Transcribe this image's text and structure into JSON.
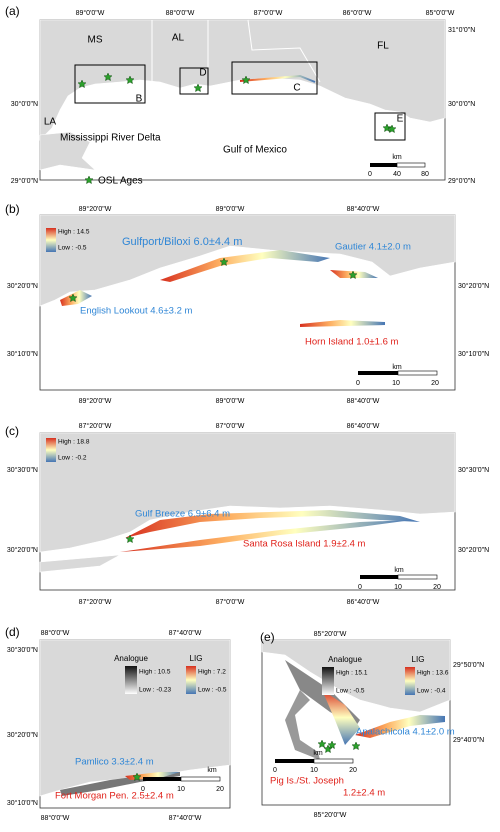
{
  "panels": [
    {
      "label": "(a)",
      "lon_ticks": [
        "89°0'0\"W",
        "88°0'0\"W",
        "87°0'0\"W",
        "86°0'0\"W",
        "85°0'0\"W"
      ],
      "lat_ticks": [
        "31°0'0\"N",
        "30°0'0\"N",
        "29°0'0\"N"
      ],
      "places": [
        "MS",
        "AL",
        "FL",
        "LA",
        "Mississippi River Delta",
        "Gulf of Mexico"
      ],
      "boxes": [
        "B",
        "C",
        "D",
        "E"
      ],
      "legend": "OSL Ages",
      "scale": {
        "unit": "km",
        "ticks": [
          "0",
          "40",
          "80"
        ]
      }
    },
    {
      "label": "(b)",
      "lon_ticks": [
        "89°20'0\"W",
        "89°0'0\"W",
        "88°40'0\"W"
      ],
      "lat_ticks": [
        "30°20'0\"N",
        "30°10'0\"N"
      ],
      "legend": {
        "high": "High : 14.5",
        "low": "Low : -0.5"
      },
      "annotations": [
        "Gulfport/Biloxi 6.0±4.4 m",
        "Gautier 4.1±2.0 m",
        "English Lookout 4.6±3.2 m",
        "Horn Island 1.0±1.6 m"
      ],
      "scale": {
        "unit": "km",
        "ticks": [
          "0",
          "10",
          "20"
        ]
      }
    },
    {
      "label": "(c)",
      "lon_ticks": [
        "87°20'0\"W",
        "87°0'0\"W",
        "86°40'0\"W"
      ],
      "lat_ticks": [
        "30°30'0\"N",
        "30°20'0\"N"
      ],
      "legend": {
        "high": "High : 18.8",
        "low": "Low : -0.2"
      },
      "annotations": [
        "Gulf Breeze 6.9±6.4 m",
        "Santa Rosa Island 1.9±2.4 m"
      ],
      "scale": {
        "unit": "km",
        "ticks": [
          "0",
          "10",
          "20"
        ]
      }
    },
    {
      "label": "(d)",
      "lon_ticks": [
        "88°0'0\"W",
        "87°40'0\"W"
      ],
      "lat_ticks": [
        "30°30'0\"N",
        "30°20'0\"N",
        "30°10'0\"N"
      ],
      "legend": {
        "analogue": {
          "title": "Analogue",
          "high": "High : 10.5",
          "low": "Low : -0.23"
        },
        "lig": {
          "title": "LIG",
          "high": "High : 7.2",
          "low": "Low : -0.5"
        }
      },
      "annotations": [
        "Pamlico 3.3±2.4 m",
        "Fort Morgan Pen. 2.5±2.4 m"
      ],
      "scale": {
        "unit": "km",
        "ticks": [
          "0",
          "10",
          "20"
        ]
      }
    },
    {
      "label": "(e)",
      "lon_ticks": [
        "85°20'0\"W"
      ],
      "lat_ticks": [
        "29°50'0\"N",
        "29°40'0\"N"
      ],
      "legend": {
        "analogue": {
          "title": "Analogue",
          "high": "High : 15.1",
          "low": "Low : -0.5"
        },
        "lig": {
          "title": "LIG",
          "high": "High : 13.6",
          "low": "Low : -0.4"
        }
      },
      "annotations": [
        "Apalachicola 4.1±2.0 m",
        "Pig Is./St. Joseph",
        "1.2±2.4 m"
      ],
      "scale": {
        "unit": "km",
        "ticks": [
          "0",
          "10",
          "20"
        ]
      }
    }
  ]
}
